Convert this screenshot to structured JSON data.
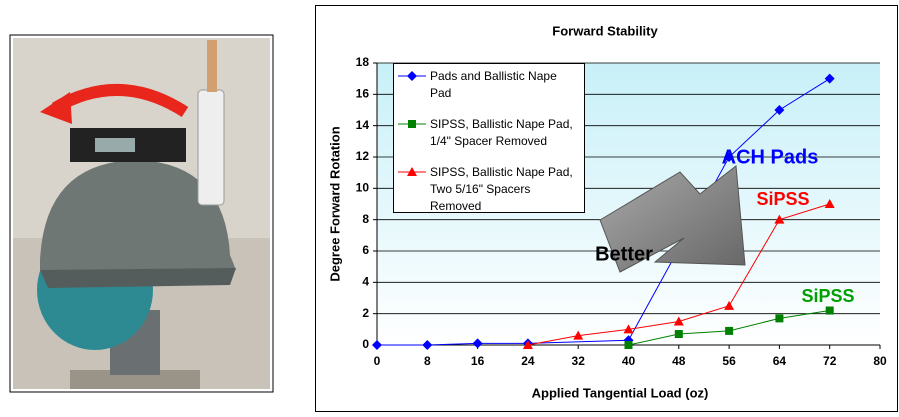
{
  "chart_data": {
    "type": "line",
    "title": "Forward Stability",
    "xlabel": "Applied Tangential Load (oz)",
    "ylabel": "Degree Forward Rotation",
    "xlim": [
      0,
      80
    ],
    "xticks": [
      0,
      8,
      16,
      24,
      32,
      40,
      48,
      56,
      64,
      72,
      80
    ],
    "ylim": [
      0,
      18
    ],
    "yticks": [
      0,
      2,
      4,
      6,
      8,
      10,
      12,
      14,
      16,
      18
    ],
    "grid": true,
    "series": [
      {
        "name": "Pads and Ballistic Nape Pad",
        "color": "#0000ff",
        "marker": "diamond",
        "x": [
          0,
          8,
          16,
          24,
          40,
          56,
          64,
          72
        ],
        "values": [
          0,
          0,
          0.1,
          0.1,
          0.3,
          12,
          15,
          17
        ]
      },
      {
        "name": "SIPSS, Ballistic Nape Pad, 1/4\" Spacer Removed",
        "color": "#008000",
        "marker": "square",
        "x": [
          40,
          48,
          56,
          64,
          72
        ],
        "values": [
          0,
          0.7,
          0.9,
          1.7,
          2.2
        ]
      },
      {
        "name": "SIPSS, Ballistic Nape Pad, Two 5/16\" Spacers Removed",
        "color": "#ff0000",
        "marker": "triangle",
        "x": [
          24,
          32,
          40,
          48,
          56,
          64,
          72
        ],
        "values": [
          0,
          0.6,
          1.0,
          1.5,
          2.5,
          8,
          9
        ]
      }
    ],
    "annotations": [
      {
        "text": "ACH Pads",
        "color": "#0000ff"
      },
      {
        "text": "SiPSS",
        "color": "#ff0000"
      },
      {
        "text": "SiPSS",
        "color": "#00a000"
      },
      {
        "text": "Better",
        "color": "#000000"
      }
    ]
  }
}
